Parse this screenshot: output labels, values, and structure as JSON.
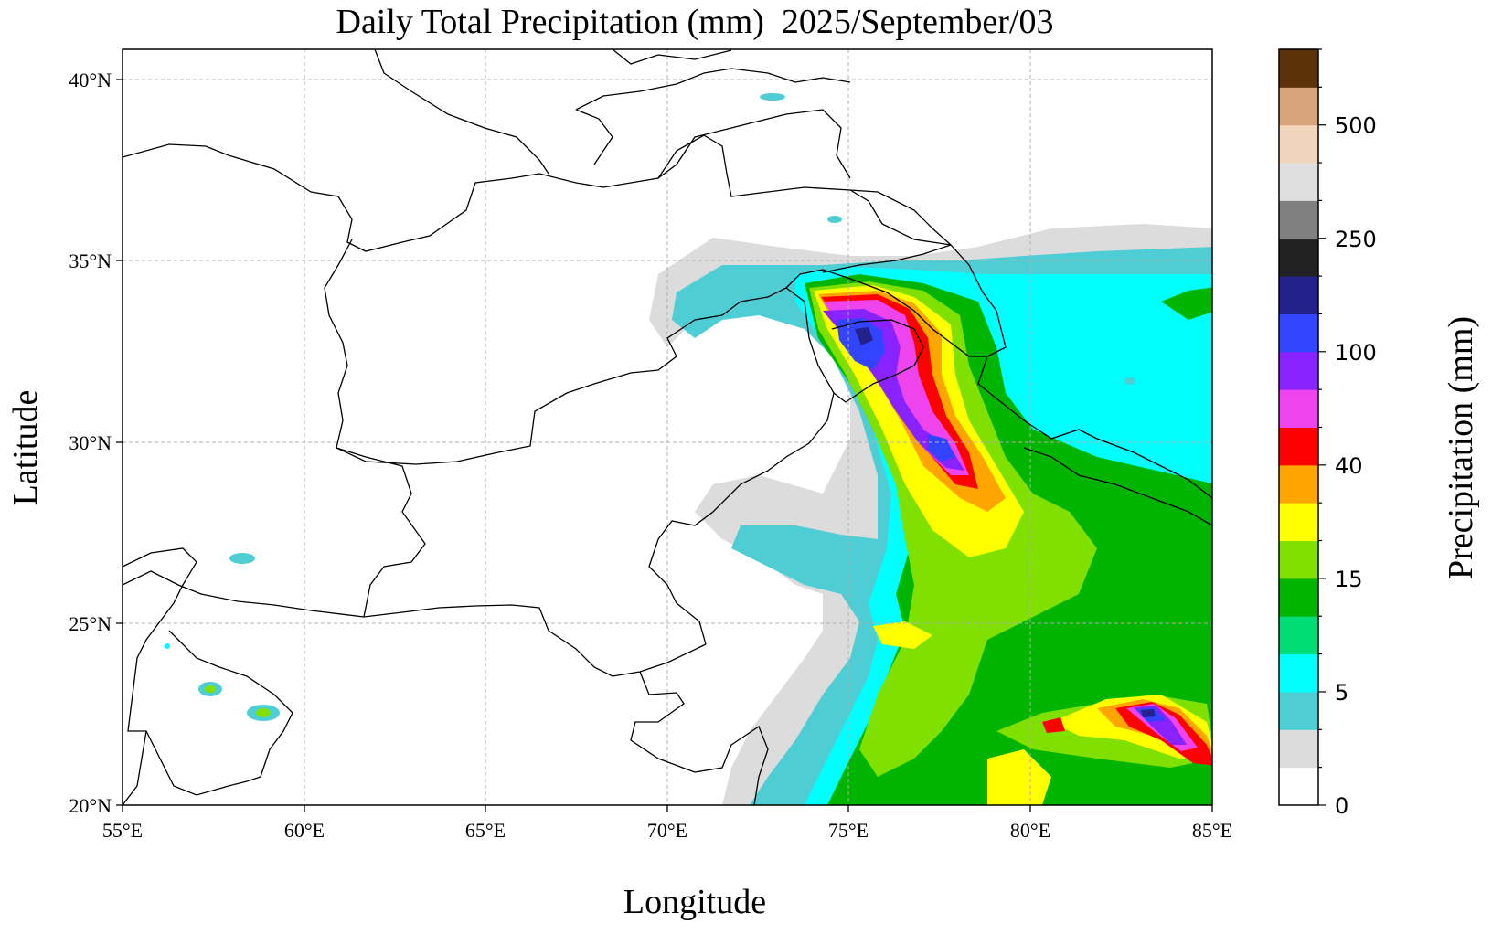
{
  "title": "Daily Total Precipitation (mm)  2025/September/03",
  "xlabel": "Longitude",
  "ylabel": "Latitude",
  "lon_ticks": [
    "55°E",
    "60°E",
    "65°E",
    "70°E",
    "75°E",
    "80°E",
    "85°E"
  ],
  "lat_ticks": [
    "20°N",
    "25°N",
    "30°N",
    "35°N",
    "40°N"
  ],
  "map_extent": {
    "lon": [
      55,
      85
    ],
    "lat": [
      20,
      40.8
    ]
  },
  "colorbar": {
    "label": "Precipitation (mm)",
    "tick_labels": [
      "0",
      "5",
      "15",
      "40",
      "100",
      "250",
      "500"
    ],
    "tick_levels": [
      0,
      3,
      6,
      9,
      12,
      15,
      18
    ],
    "colors": [
      "#ffffff",
      "#dcdcdc",
      "#4ecdd4",
      "#00ffff",
      "#00dd77",
      "#00b400",
      "#80e000",
      "#ffff00",
      "#ffa500",
      "#ff0000",
      "#ee44ee",
      "#8822ff",
      "#3344ff",
      "#22228a",
      "#222222",
      "#808080",
      "#dedede",
      "#f0d4bc",
      "#d8a27a",
      "#5e3208"
    ]
  }
}
